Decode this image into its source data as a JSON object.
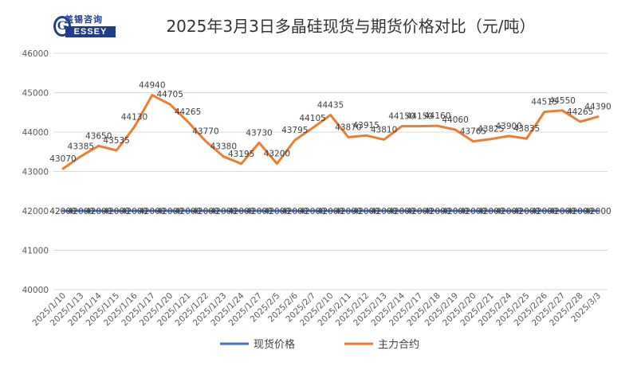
{
  "logo": {
    "top_text": "盖锡咨询",
    "bar_text": "ESSEY",
    "g": "G"
  },
  "colors": {
    "spot": "#4472C4",
    "futures": "#ED7D31",
    "grid": "#d9d9d9"
  },
  "chart_data": {
    "type": "line",
    "title": "2025年3月3日多晶硅现货与期货价格对比（元/吨）",
    "ylim": [
      40000,
      46000
    ],
    "yticks": [
      40000,
      41000,
      42000,
      43000,
      44000,
      45000,
      46000
    ],
    "grid": true,
    "legend": "bottom",
    "x": [
      "2025/1/10",
      "2025/1/13",
      "2025/1/14",
      "2025/1/15",
      "2025/1/16",
      "2025/1/17",
      "2025/1/20",
      "2025/1/21",
      "2025/1/22",
      "2025/1/23",
      "2025/1/24",
      "2025/1/27",
      "2025/2/5",
      "2025/2/6",
      "2025/2/7",
      "2025/2/10",
      "2025/2/11",
      "2025/2/12",
      "2025/2/13",
      "2025/2/14",
      "2025/2/17",
      "2025/2/18",
      "2025/2/19",
      "2025/2/20",
      "2025/2/21",
      "2025/2/24",
      "2025/2/25",
      "2025/2/26",
      "2025/2/27",
      "2025/2/28",
      "2025/3/3"
    ],
    "series": [
      {
        "name": "现货价格",
        "values": [
          42000,
          42000,
          42000,
          42000,
          42000,
          42000,
          42000,
          42000,
          42000,
          42000,
          42000,
          42000,
          42000,
          42000,
          42000,
          42000,
          42000,
          42000,
          42000,
          42000,
          42000,
          42000,
          42000,
          42000,
          42000,
          42000,
          42000,
          42000,
          42000,
          42000,
          42000
        ]
      },
      {
        "name": "主力合约",
        "values": [
          43070,
          43385,
          43650,
          43535,
          44130,
          44940,
          44705,
          44265,
          43770,
          43380,
          43195,
          43730,
          43200,
          43795,
          44105,
          44435,
          43870,
          43915,
          43810,
          44150,
          44150,
          44160,
          44060,
          43765,
          43825,
          43900,
          43835,
          44515,
          44550,
          44265,
          44390
        ]
      }
    ]
  }
}
